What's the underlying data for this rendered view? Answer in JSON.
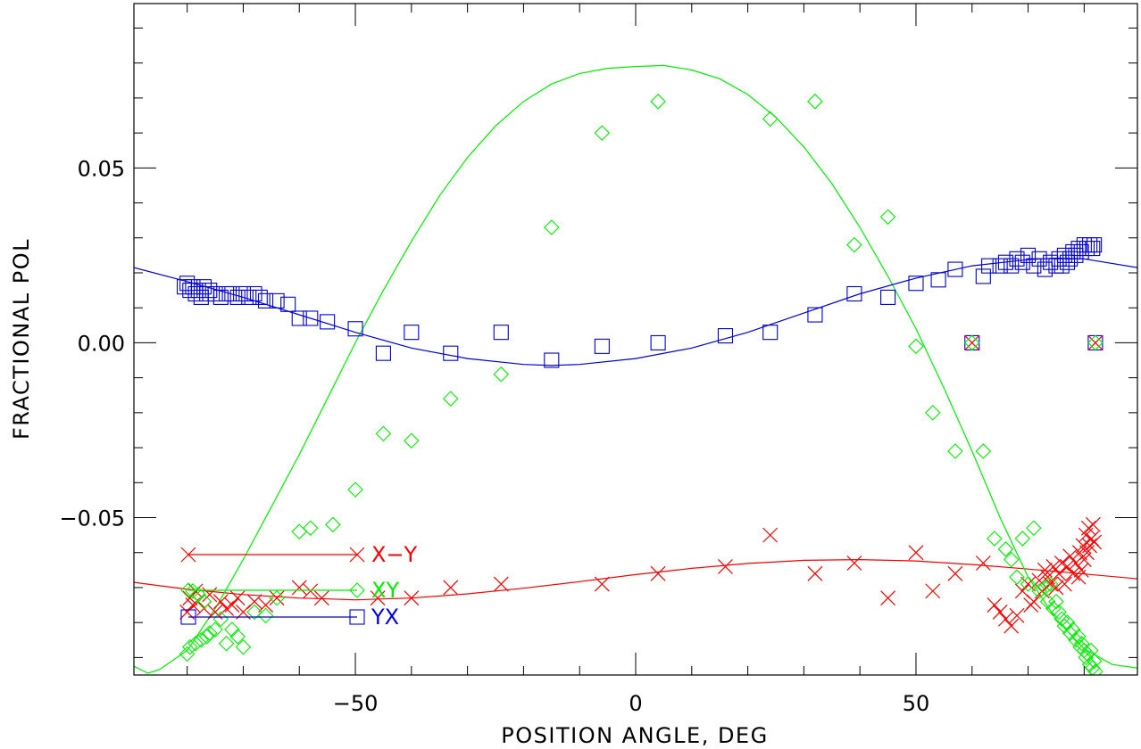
{
  "chart_data": {
    "type": "scatter",
    "xlabel": "POSITION ANGLE, DEG",
    "ylabel": "FRACTIONAL POL",
    "xlim": [
      -89.5,
      89.5
    ],
    "ylim": [
      -0.095,
      0.097
    ],
    "xticks": [
      -50,
      0,
      50
    ],
    "xtick_labels": [
      "−50",
      "0",
      "50"
    ],
    "yticks": [
      -0.05,
      0.0,
      0.05
    ],
    "ytick_labels": [
      "−0.05",
      "0.00",
      "0.05"
    ],
    "grid": false,
    "legend_position": "bottom-left inside plot",
    "colors": {
      "x_minus_y": "#ff0000",
      "xy": "#00ee00",
      "yx": "#0000dd",
      "axes": "#000000"
    },
    "series": [
      {
        "name": "X−Y",
        "legend_label": "X−Y",
        "marker": "x",
        "color": "#ff0000",
        "points": [
          [
            -80,
            -0.077
          ],
          [
            -79.5,
            -0.073
          ],
          [
            -79,
            -0.075
          ],
          [
            -78.5,
            -0.071
          ],
          [
            -78,
            -0.074
          ],
          [
            -77,
            -0.076
          ],
          [
            -76,
            -0.072
          ],
          [
            -75,
            -0.077
          ],
          [
            -74,
            -0.074
          ],
          [
            -73,
            -0.076
          ],
          [
            -72,
            -0.075
          ],
          [
            -71,
            -0.073
          ],
          [
            -70,
            -0.077
          ],
          [
            -68,
            -0.074
          ],
          [
            -66,
            -0.075
          ],
          [
            -64,
            -0.073
          ],
          [
            -60,
            -0.07
          ],
          [
            -58,
            -0.071
          ],
          [
            -56,
            -0.073
          ],
          [
            -46,
            -0.073
          ],
          [
            -40,
            -0.073
          ],
          [
            -33,
            -0.07
          ],
          [
            -24,
            -0.069
          ],
          [
            -6,
            -0.069
          ],
          [
            4,
            -0.066
          ],
          [
            16,
            -0.064
          ],
          [
            24,
            -0.055
          ],
          [
            32,
            -0.066
          ],
          [
            39,
            -0.063
          ],
          [
            45,
            -0.073
          ],
          [
            50,
            -0.06
          ],
          [
            53,
            -0.071
          ],
          [
            57,
            -0.066
          ],
          [
            62,
            -0.063
          ],
          [
            64,
            -0.075
          ],
          [
            65,
            -0.077
          ],
          [
            66,
            -0.079
          ],
          [
            67,
            -0.081
          ],
          [
            68,
            -0.078
          ],
          [
            69,
            -0.071
          ],
          [
            70,
            -0.069
          ],
          [
            70.5,
            -0.075
          ],
          [
            71,
            -0.074
          ],
          [
            72,
            -0.068
          ],
          [
            72.5,
            -0.071
          ],
          [
            73,
            -0.065
          ],
          [
            73.5,
            -0.067
          ],
          [
            74,
            -0.069
          ],
          [
            74.5,
            -0.064
          ],
          [
            75,
            -0.07
          ],
          [
            75.5,
            -0.066
          ],
          [
            76,
            -0.063
          ],
          [
            76.5,
            -0.069
          ],
          [
            77,
            -0.064
          ],
          [
            77.5,
            -0.061
          ],
          [
            78,
            -0.066
          ],
          [
            78.5,
            -0.063
          ],
          [
            79,
            -0.067
          ],
          [
            79.2,
            -0.06
          ],
          [
            79.5,
            -0.065
          ],
          [
            79.8,
            -0.058
          ],
          [
            80,
            -0.062
          ],
          [
            80.3,
            -0.055
          ],
          [
            80.5,
            -0.06
          ],
          [
            80.8,
            -0.053
          ],
          [
            81,
            -0.058
          ],
          [
            81.3,
            -0.056
          ],
          [
            81.6,
            -0.052
          ],
          [
            81.8,
            -0.057
          ]
        ],
        "fit": [
          [
            -89.5,
            -0.0685
          ],
          [
            -80,
            -0.0705
          ],
          [
            -70,
            -0.072
          ],
          [
            -60,
            -0.073
          ],
          [
            -50,
            -0.0735
          ],
          [
            -40,
            -0.073
          ],
          [
            -30,
            -0.0718
          ],
          [
            -20,
            -0.0702
          ],
          [
            -10,
            -0.0683
          ],
          [
            0,
            -0.0663
          ],
          [
            10,
            -0.0645
          ],
          [
            20,
            -0.0631
          ],
          [
            30,
            -0.0622
          ],
          [
            40,
            -0.062
          ],
          [
            50,
            -0.0624
          ],
          [
            60,
            -0.0634
          ],
          [
            70,
            -0.0647
          ],
          [
            80,
            -0.0661
          ],
          [
            89.5,
            -0.0675
          ]
        ]
      },
      {
        "name": "XY",
        "legend_label": "XY",
        "marker": "diamond",
        "color": "#00ee00",
        "points": [
          [
            -80,
            -0.089
          ],
          [
            -79.5,
            -0.087
          ],
          [
            -79,
            -0.071
          ],
          [
            -78.5,
            -0.086
          ],
          [
            -78,
            -0.072
          ],
          [
            -77.5,
            -0.085
          ],
          [
            -77,
            -0.074
          ],
          [
            -76.5,
            -0.084
          ],
          [
            -76,
            -0.083
          ],
          [
            -75,
            -0.082
          ],
          [
            -74,
            -0.079
          ],
          [
            -73,
            -0.086
          ],
          [
            -72,
            -0.082
          ],
          [
            -71,
            -0.084
          ],
          [
            -70,
            -0.087
          ],
          [
            -68,
            -0.077
          ],
          [
            -66,
            -0.078
          ],
          [
            -64,
            -0.073
          ],
          [
            -60,
            -0.054
          ],
          [
            -58,
            -0.053
          ],
          [
            -54,
            -0.052
          ],
          [
            -50,
            -0.042
          ],
          [
            -45,
            -0.026
          ],
          [
            -40,
            -0.028
          ],
          [
            -33,
            -0.016
          ],
          [
            -24,
            -0.009
          ],
          [
            -15,
            0.033
          ],
          [
            -6,
            0.06
          ],
          [
            4,
            0.069
          ],
          [
            24,
            0.064
          ],
          [
            32,
            0.069
          ],
          [
            39,
            0.028
          ],
          [
            45,
            0.036
          ],
          [
            50,
            -0.001
          ],
          [
            53,
            -0.02
          ],
          [
            57,
            -0.031
          ],
          [
            62,
            -0.031
          ],
          [
            64,
            -0.056
          ],
          [
            66,
            -0.059
          ],
          [
            67,
            -0.062
          ],
          [
            68,
            -0.067
          ],
          [
            69,
            -0.056
          ],
          [
            70,
            -0.069
          ],
          [
            71,
            -0.053
          ],
          [
            72,
            -0.071
          ],
          [
            73,
            -0.07
          ],
          [
            73.5,
            -0.074
          ],
          [
            74,
            -0.069
          ],
          [
            74.5,
            -0.076
          ],
          [
            75,
            -0.074
          ],
          [
            75.5,
            -0.077
          ],
          [
            76,
            -0.079
          ],
          [
            76.5,
            -0.081
          ],
          [
            77,
            -0.08
          ],
          [
            77.5,
            -0.083
          ],
          [
            78,
            -0.082
          ],
          [
            78.5,
            -0.085
          ],
          [
            79,
            -0.084
          ],
          [
            79.3,
            -0.087
          ],
          [
            79.6,
            -0.086
          ],
          [
            80,
            -0.088
          ],
          [
            80.3,
            -0.09
          ],
          [
            80.6,
            -0.089
          ],
          [
            81,
            -0.092
          ],
          [
            81.2,
            -0.088
          ],
          [
            81.5,
            -0.093
          ],
          [
            81.8,
            -0.091
          ],
          [
            82,
            -0.094
          ]
        ],
        "fit": [
          [
            -89.5,
            -0.0925
          ],
          [
            -87,
            -0.0945
          ],
          [
            -85,
            -0.0935
          ],
          [
            -80,
            -0.088
          ],
          [
            -75,
            -0.076
          ],
          [
            -70,
            -0.062
          ],
          [
            -65,
            -0.047
          ],
          [
            -60,
            -0.032
          ],
          [
            -55,
            -0.016
          ],
          [
            -50,
            0.0
          ],
          [
            -45,
            0.015
          ],
          [
            -40,
            0.029
          ],
          [
            -35,
            0.042
          ],
          [
            -30,
            0.053
          ],
          [
            -25,
            0.062
          ],
          [
            -20,
            0.069
          ],
          [
            -15,
            0.074
          ],
          [
            -10,
            0.077
          ],
          [
            -5,
            0.0785
          ],
          [
            0,
            0.079
          ],
          [
            5,
            0.0793
          ],
          [
            10,
            0.078
          ],
          [
            15,
            0.0755
          ],
          [
            20,
            0.071
          ],
          [
            25,
            0.0645
          ],
          [
            30,
            0.056
          ],
          [
            35,
            0.0455
          ],
          [
            40,
            0.033
          ],
          [
            45,
            0.019
          ],
          [
            50,
            0.004
          ],
          [
            55,
            -0.013
          ],
          [
            60,
            -0.031
          ],
          [
            65,
            -0.05
          ],
          [
            70,
            -0.067
          ],
          [
            75,
            -0.079
          ],
          [
            80,
            -0.0875
          ],
          [
            85,
            -0.092
          ],
          [
            89.5,
            -0.093
          ]
        ]
      },
      {
        "name": "YX",
        "legend_label": "YX",
        "marker": "square",
        "color": "#0000dd",
        "points": [
          [
            -80.5,
            0.016
          ],
          [
            -80,
            0.017
          ],
          [
            -79.5,
            0.015
          ],
          [
            -79,
            0.016
          ],
          [
            -78.5,
            0.014
          ],
          [
            -78,
            0.015
          ],
          [
            -77.5,
            0.013
          ],
          [
            -77,
            0.016
          ],
          [
            -76.5,
            0.014
          ],
          [
            -76,
            0.015
          ],
          [
            -75,
            0.014
          ],
          [
            -74,
            0.013
          ],
          [
            -73,
            0.014
          ],
          [
            -72,
            0.014
          ],
          [
            -71,
            0.013
          ],
          [
            -70,
            0.014
          ],
          [
            -69,
            0.013
          ],
          [
            -68,
            0.014
          ],
          [
            -67,
            0.013
          ],
          [
            -66,
            0.012
          ],
          [
            -64,
            0.012
          ],
          [
            -62,
            0.011
          ],
          [
            -60,
            0.007
          ],
          [
            -58,
            0.007
          ],
          [
            -55,
            0.006
          ],
          [
            -50,
            0.004
          ],
          [
            -45,
            -0.003
          ],
          [
            -40,
            0.003
          ],
          [
            -33,
            -0.003
          ],
          [
            -24,
            0.003
          ],
          [
            -15,
            -0.005
          ],
          [
            -6,
            -0.001
          ],
          [
            4,
            0.0
          ],
          [
            16,
            0.002
          ],
          [
            24,
            0.003
          ],
          [
            32,
            0.008
          ],
          [
            39,
            0.014
          ],
          [
            45,
            0.013
          ],
          [
            50,
            0.017
          ],
          [
            54,
            0.018
          ],
          [
            57,
            0.021
          ],
          [
            62,
            0.019
          ],
          [
            63,
            0.022
          ],
          [
            65,
            0.022
          ],
          [
            66,
            0.023
          ],
          [
            67,
            0.022
          ],
          [
            68,
            0.024
          ],
          [
            69,
            0.023
          ],
          [
            70,
            0.025
          ],
          [
            71,
            0.022
          ],
          [
            72,
            0.024
          ],
          [
            73,
            0.021
          ],
          [
            74,
            0.023
          ],
          [
            75,
            0.022
          ],
          [
            75.5,
            0.024
          ],
          [
            76,
            0.022
          ],
          [
            76.5,
            0.025
          ],
          [
            77,
            0.023
          ],
          [
            77.5,
            0.024
          ],
          [
            78,
            0.026
          ],
          [
            78.5,
            0.025
          ],
          [
            79,
            0.027
          ],
          [
            79.5,
            0.026
          ],
          [
            80,
            0.028
          ],
          [
            80.5,
            0.027
          ],
          [
            81,
            0.028
          ],
          [
            81.5,
            0.027
          ],
          [
            81.8,
            0.028
          ]
        ],
        "fit": [
          [
            -89.5,
            0.0215
          ],
          [
            -80,
            0.0175
          ],
          [
            -70,
            0.013
          ],
          [
            -60,
            0.008
          ],
          [
            -50,
            0.003
          ],
          [
            -40,
            -0.0015
          ],
          [
            -30,
            -0.0045
          ],
          [
            -20,
            -0.0062
          ],
          [
            -15,
            -0.0065
          ],
          [
            -10,
            -0.0062
          ],
          [
            0,
            -0.0045
          ],
          [
            10,
            -0.0015
          ],
          [
            20,
            0.003
          ],
          [
            30,
            0.0085
          ],
          [
            40,
            0.014
          ],
          [
            50,
            0.0185
          ],
          [
            60,
            0.022
          ],
          [
            70,
            0.0238
          ],
          [
            75,
            0.0242
          ],
          [
            80,
            0.024
          ],
          [
            89.5,
            0.0215
          ]
        ]
      }
    ],
    "overlap_markers": [
      [
        60,
        0.0
      ],
      [
        82,
        0.0
      ]
    ]
  }
}
